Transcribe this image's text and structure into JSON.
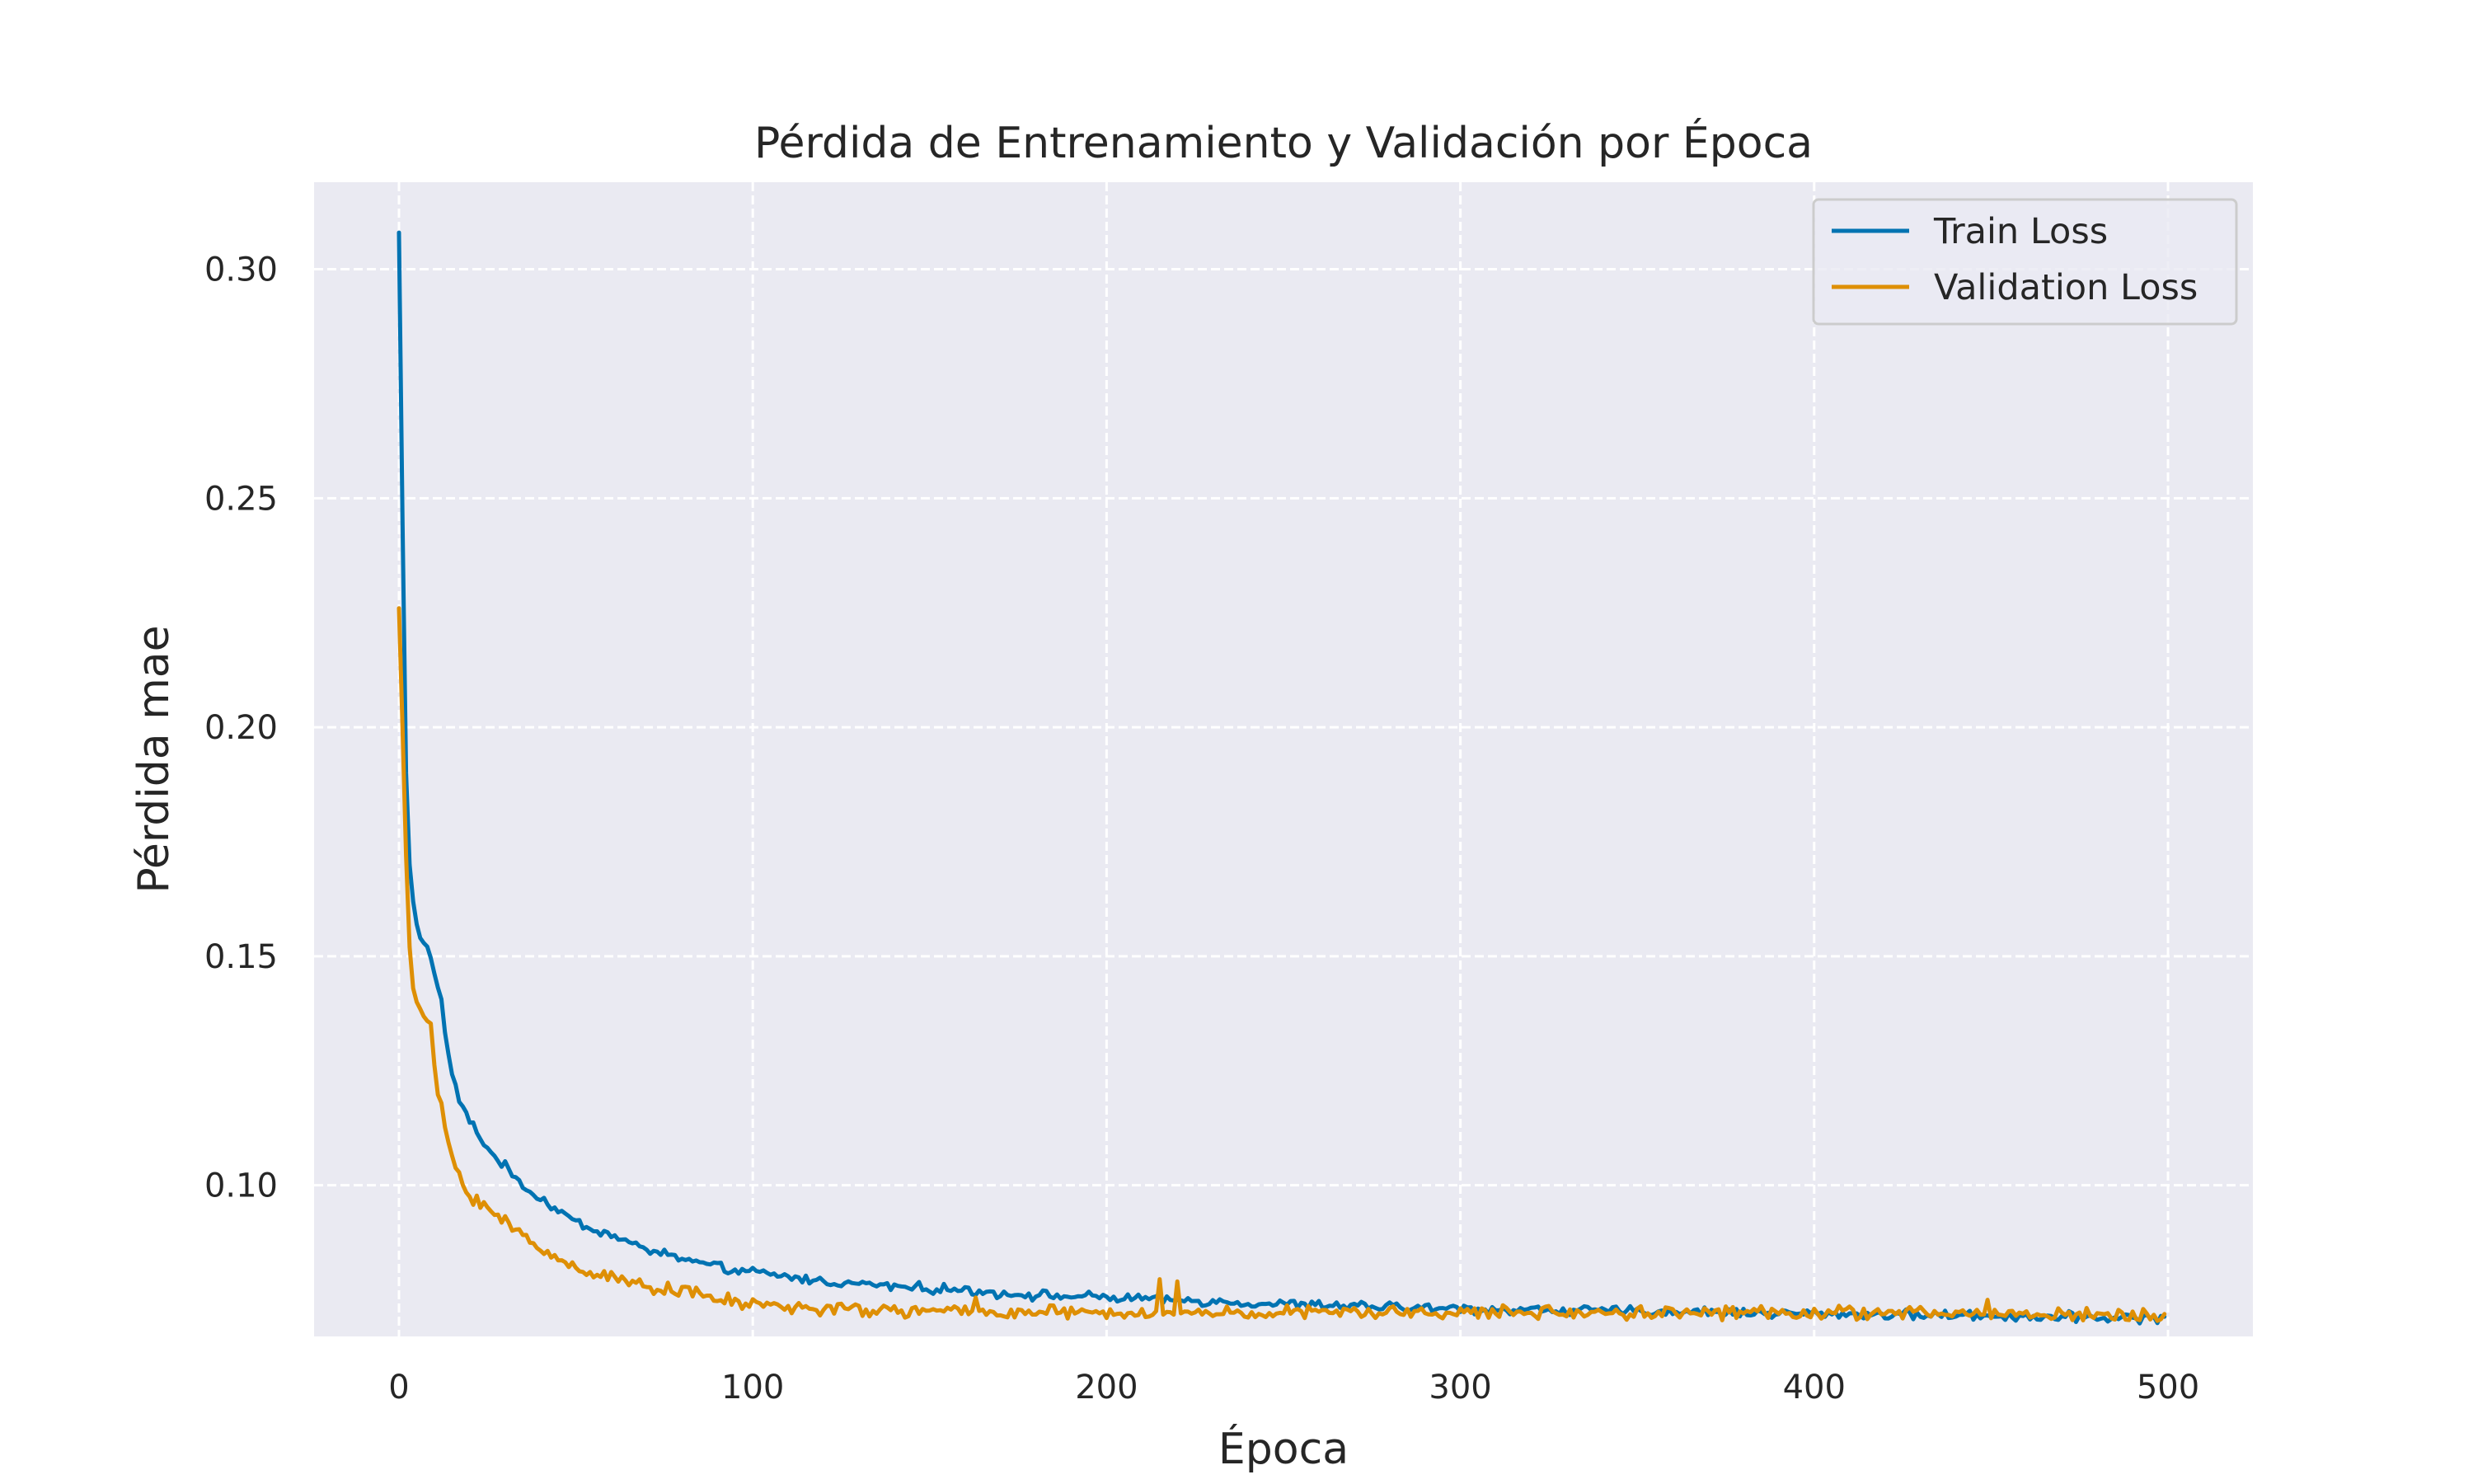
{
  "chart_data": {
    "type": "line",
    "title": "Pérdida de Entrenamiento y Validación por Época",
    "xlabel": "Época",
    "ylabel": "Pérdida mae",
    "xlim": [
      -24,
      524
    ],
    "ylim": [
      0.067,
      0.319
    ],
    "xticks": [
      0,
      100,
      200,
      300,
      400,
      500
    ],
    "yticks": [
      0.1,
      0.15,
      0.2,
      0.25,
      0.3
    ],
    "xtick_labels": [
      "0",
      "100",
      "200",
      "300",
      "400",
      "500"
    ],
    "ytick_labels": [
      "0.10",
      "0.15",
      "0.20",
      "0.25",
      "0.30"
    ],
    "grid": true,
    "grid_style": "dashed",
    "legend_position": "top-right",
    "colors": {
      "background": "#eaeaf2",
      "grid": "#ffffff",
      "train": "#0173b2",
      "validation": "#de8f05"
    },
    "epochs": {
      "start": 0,
      "end": 499,
      "step": 1
    },
    "series": [
      {
        "name": "Train Loss",
        "color": "#0173b2",
        "key_points": [
          [
            0,
            0.308
          ],
          [
            1,
            0.245
          ],
          [
            2,
            0.19
          ],
          [
            3,
            0.17
          ],
          [
            4,
            0.162
          ],
          [
            5,
            0.157
          ],
          [
            6,
            0.154
          ],
          [
            8,
            0.152
          ],
          [
            10,
            0.147
          ],
          [
            12,
            0.14
          ],
          [
            14,
            0.128
          ],
          [
            16,
            0.121
          ],
          [
            18,
            0.117
          ],
          [
            20,
            0.114
          ],
          [
            25,
            0.108
          ],
          [
            30,
            0.104
          ],
          [
            35,
            0.1
          ],
          [
            40,
            0.097
          ],
          [
            50,
            0.092
          ],
          [
            60,
            0.089
          ],
          [
            70,
            0.086
          ],
          [
            80,
            0.084
          ],
          [
            90,
            0.082
          ],
          [
            100,
            0.081
          ],
          [
            120,
            0.079
          ],
          [
            140,
            0.078
          ],
          [
            160,
            0.077
          ],
          [
            180,
            0.076
          ],
          [
            200,
            0.0755
          ],
          [
            250,
            0.074
          ],
          [
            300,
            0.073
          ],
          [
            350,
            0.0725
          ],
          [
            400,
            0.072
          ],
          [
            450,
            0.0715
          ],
          [
            499,
            0.071
          ]
        ],
        "noise": 0.0008
      },
      {
        "name": "Validation Loss",
        "color": "#de8f05",
        "key_points": [
          [
            0,
            0.226
          ],
          [
            1,
            0.2
          ],
          [
            2,
            0.172
          ],
          [
            3,
            0.152
          ],
          [
            4,
            0.143
          ],
          [
            5,
            0.14
          ],
          [
            7,
            0.137
          ],
          [
            9,
            0.134
          ],
          [
            11,
            0.12
          ],
          [
            13,
            0.113
          ],
          [
            15,
            0.106
          ],
          [
            18,
            0.1
          ],
          [
            20,
            0.098
          ],
          [
            25,
            0.095
          ],
          [
            30,
            0.092
          ],
          [
            35,
            0.089
          ],
          [
            40,
            0.086
          ],
          [
            50,
            0.082
          ],
          [
            60,
            0.08
          ],
          [
            70,
            0.078
          ],
          [
            80,
            0.077
          ],
          [
            90,
            0.075
          ],
          [
            100,
            0.074
          ],
          [
            120,
            0.073
          ],
          [
            140,
            0.0725
          ],
          [
            160,
            0.0725
          ],
          [
            200,
            0.072
          ],
          [
            250,
            0.0722
          ],
          [
            300,
            0.0722
          ],
          [
            350,
            0.0722
          ],
          [
            400,
            0.0722
          ],
          [
            450,
            0.072
          ],
          [
            499,
            0.0715
          ]
        ],
        "noise": 0.0011,
        "spikes": [
          [
            163,
            0.0755
          ],
          [
            215,
            0.0795
          ],
          [
            220,
            0.079
          ],
          [
            449,
            0.075
          ]
        ]
      }
    ]
  }
}
